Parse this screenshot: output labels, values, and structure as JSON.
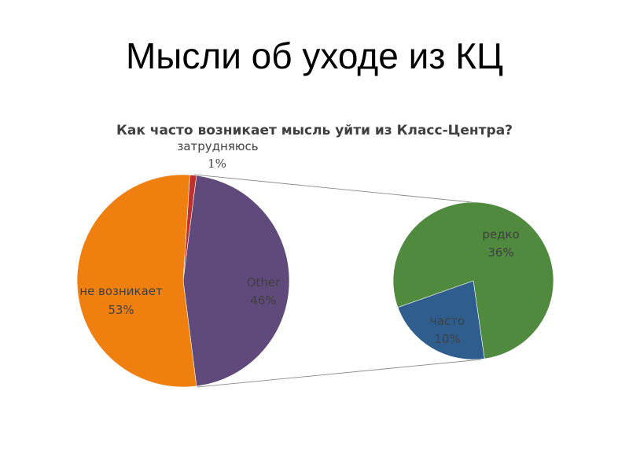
{
  "slide": {
    "title": "Мысли об уходе из КЦ"
  },
  "chart_data": {
    "type": "pie",
    "title": "Как часто возникает мысль уйти из Класс-Центра?",
    "main_pie": [
      {
        "name": "затрудняюсь",
        "value": 1,
        "label": "1%",
        "color": "#C0302E"
      },
      {
        "name": "Other",
        "value": 46,
        "label": "46%",
        "color": "#5F4A7B"
      },
      {
        "name": "не возникает",
        "value": 53,
        "label": "53%",
        "color": "#EF8010"
      }
    ],
    "breakout_pie": [
      {
        "name": "редко",
        "value": 36,
        "label": "36%",
        "color": "#4F8A3F"
      },
      {
        "name": "часто",
        "value": 10,
        "label": "10%",
        "color": "#2F5E8E"
      }
    ]
  }
}
